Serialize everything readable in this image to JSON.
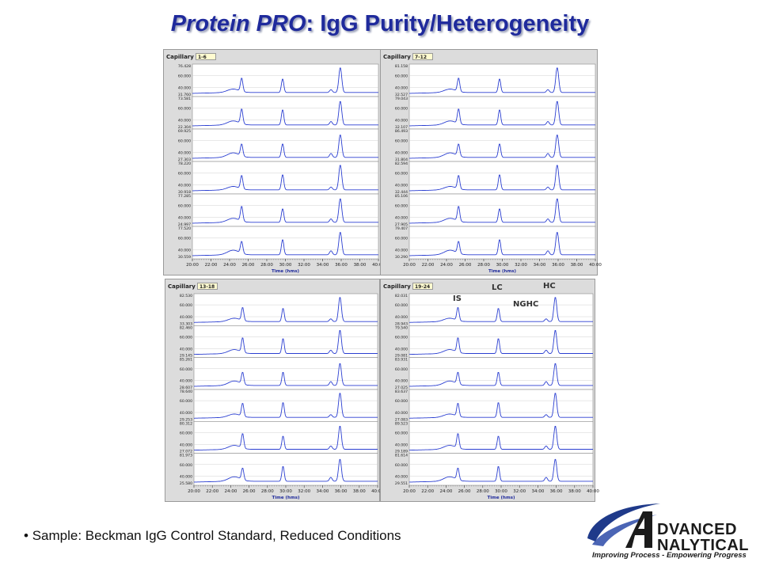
{
  "title": {
    "italic_part": "Protein PRO",
    "rest": ": IgG Purity/Heterogeneity"
  },
  "panels": [
    {
      "capillary_label": "Capillary",
      "capillary_range": "1-6",
      "trace_max_labels": [
        "76.428",
        "73.581",
        "69.925",
        "78.220",
        "77.285",
        "77.520"
      ],
      "trace_mid_labels": [
        "60.000",
        "40.000"
      ],
      "trace_min_labels": [
        "31.760",
        "22.304",
        "27.303",
        "30.918",
        "24.997",
        "30.559"
      ]
    },
    {
      "capillary_label": "Capillary",
      "capillary_range": "7-12",
      "trace_max_labels": [
        "81.158",
        "79.043",
        "86.493",
        "82.594",
        "85.106",
        "79.407"
      ],
      "trace_mid_labels": [
        "60.000",
        "40.000"
      ],
      "trace_min_labels": [
        "32.527",
        "32.107",
        "31.804",
        "32.444",
        "27.905",
        "30.290"
      ]
    },
    {
      "capillary_label": "Capillary",
      "capillary_range": "13-18",
      "trace_max_labels": [
        "82.530",
        "82.460",
        "85.261",
        "78.640",
        "80.312",
        "81.973"
      ],
      "trace_mid_labels": [
        "60.000",
        "40.000"
      ],
      "trace_min_labels": [
        "33.303",
        "29.145",
        "28.607",
        "29.253",
        "27.072",
        "25.580"
      ]
    },
    {
      "capillary_label": "Capillary",
      "capillary_range": "19-24",
      "trace_max_labels": [
        "82.031",
        "79.540",
        "83.931",
        "83.637",
        "89.523",
        "81.614"
      ],
      "trace_mid_labels": [
        "60.000",
        "40.000"
      ],
      "trace_min_labels": [
        "28.943",
        "29.081",
        "27.025",
        "27.083",
        "29.189",
        "29.551"
      ]
    }
  ],
  "chart_data": {
    "type": "line",
    "xlabel": "Time (hms)",
    "x_ticks": [
      "20:00",
      "22:00",
      "24:00",
      "26:00",
      "28:00",
      "30:00",
      "32:00",
      "34:00",
      "36:00",
      "38:00",
      "40:00"
    ],
    "xlim_minutes": [
      20,
      40
    ],
    "trace_color": "#2b3fd1",
    "peaks_minutes": {
      "IS": 25.3,
      "LC": 29.7,
      "NGHC": 34.9,
      "HC": 35.9
    },
    "peak_labels": [
      "IS",
      "LC",
      "NGHC",
      "HC"
    ]
  },
  "footer": {
    "bullet": "Sample: Beckman IgG Control Standard, Reduced Conditions"
  },
  "logo": {
    "line1": "DVANCED",
    "line2": "NALYTICAL",
    "tagline": "Improving Process - Empowering Progress",
    "brand_color": "#1f3a8a"
  }
}
